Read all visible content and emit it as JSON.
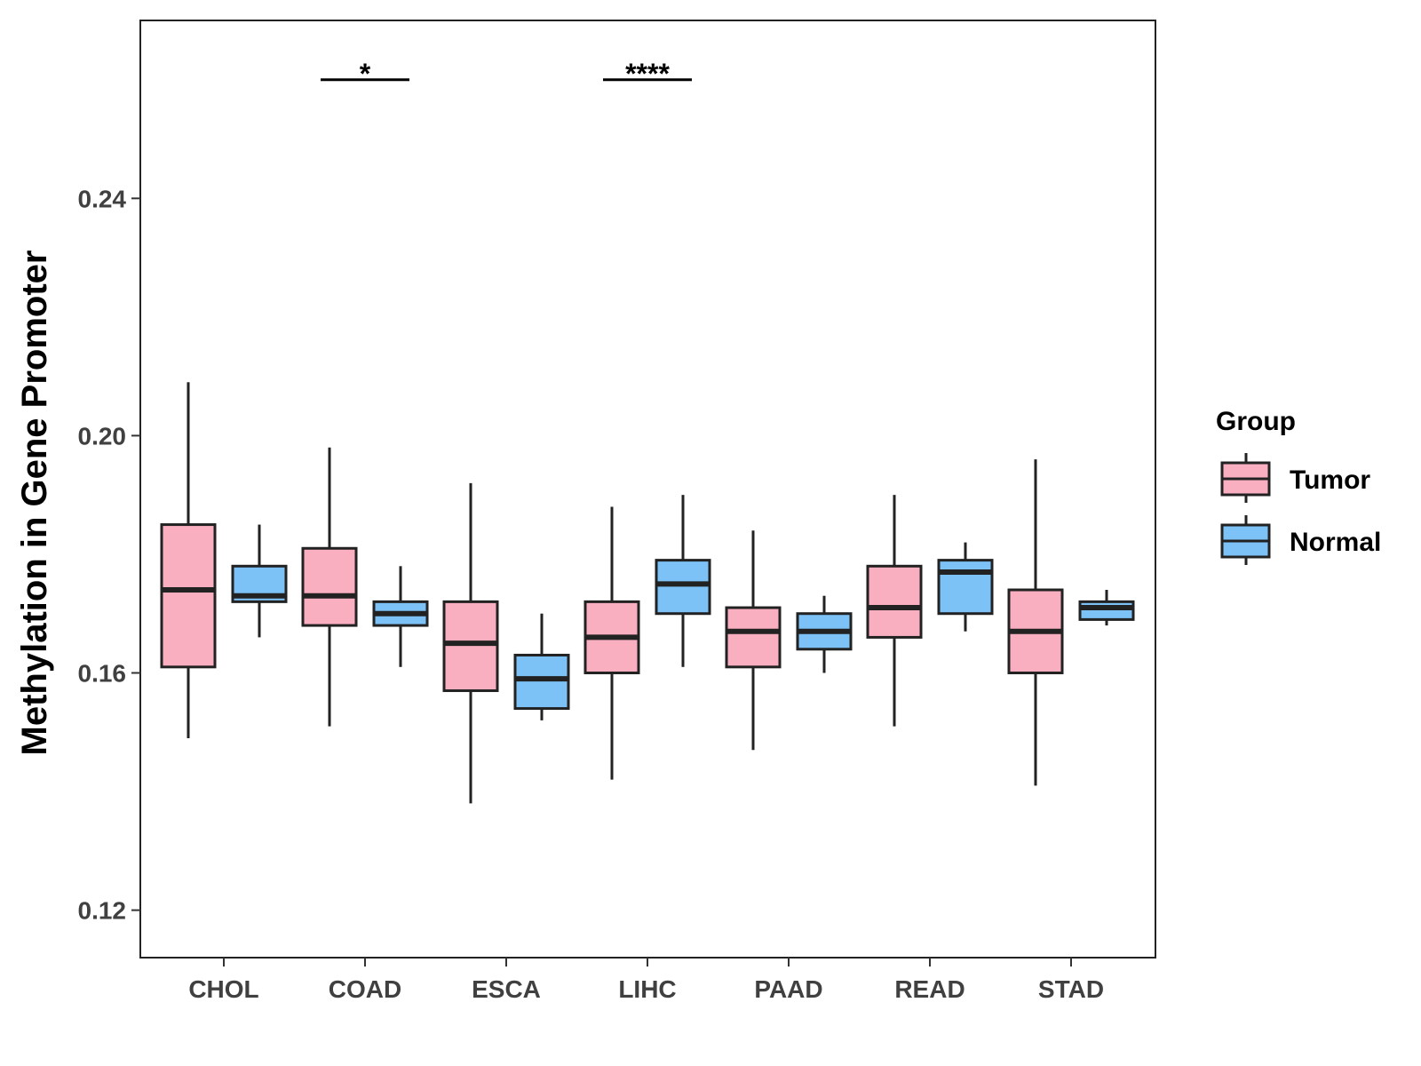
{
  "chart_data": {
    "type": "boxplot",
    "title": "",
    "xlabel": "",
    "ylabel": "Methylation in Gene Promoter",
    "ylim": [
      0.112,
      0.27
    ],
    "yticks": [
      0.12,
      0.16,
      0.2,
      0.24
    ],
    "ytick_labels": [
      "0.12",
      "0.16",
      "0.20",
      "0.24"
    ],
    "categories": [
      "CHOL",
      "COAD",
      "ESCA",
      "LIHC",
      "PAAD",
      "READ",
      "STAD"
    ],
    "legend": {
      "title": "Group",
      "position": "right",
      "entries": [
        {
          "name": "Tumor",
          "color": "#FAAFC1"
        },
        {
          "name": "Normal",
          "color": "#7CC2F6"
        }
      ]
    },
    "series": [
      {
        "name": "Tumor",
        "color": "#FAAFC1",
        "boxes": [
          {
            "min": 0.149,
            "q1": 0.161,
            "median": 0.174,
            "q3": 0.185,
            "max": 0.209
          },
          {
            "min": 0.151,
            "q1": 0.168,
            "median": 0.173,
            "q3": 0.181,
            "max": 0.198
          },
          {
            "min": 0.138,
            "q1": 0.157,
            "median": 0.165,
            "q3": 0.172,
            "max": 0.192
          },
          {
            "min": 0.142,
            "q1": 0.16,
            "median": 0.166,
            "q3": 0.172,
            "max": 0.188
          },
          {
            "min": 0.147,
            "q1": 0.161,
            "median": 0.167,
            "q3": 0.171,
            "max": 0.184
          },
          {
            "min": 0.151,
            "q1": 0.166,
            "median": 0.171,
            "q3": 0.178,
            "max": 0.19
          },
          {
            "min": 0.141,
            "q1": 0.16,
            "median": 0.167,
            "q3": 0.174,
            "max": 0.196
          }
        ]
      },
      {
        "name": "Normal",
        "color": "#7CC2F6",
        "boxes": [
          {
            "min": 0.166,
            "q1": 0.172,
            "median": 0.173,
            "q3": 0.178,
            "max": 0.185
          },
          {
            "min": 0.161,
            "q1": 0.168,
            "median": 0.17,
            "q3": 0.172,
            "max": 0.178
          },
          {
            "min": 0.152,
            "q1": 0.154,
            "median": 0.159,
            "q3": 0.163,
            "max": 0.17
          },
          {
            "min": 0.161,
            "q1": 0.17,
            "median": 0.175,
            "q3": 0.179,
            "max": 0.19
          },
          {
            "min": 0.16,
            "q1": 0.164,
            "median": 0.167,
            "q3": 0.17,
            "max": 0.173
          },
          {
            "min": 0.167,
            "q1": 0.17,
            "median": 0.177,
            "q3": 0.179,
            "max": 0.182
          },
          {
            "min": 0.168,
            "q1": 0.169,
            "median": 0.171,
            "q3": 0.172,
            "max": 0.174
          }
        ]
      }
    ],
    "significance": [
      {
        "category": "COAD",
        "label": "*",
        "y": 0.26
      },
      {
        "category": "LIHC",
        "label": "****",
        "y": 0.26
      }
    ]
  }
}
